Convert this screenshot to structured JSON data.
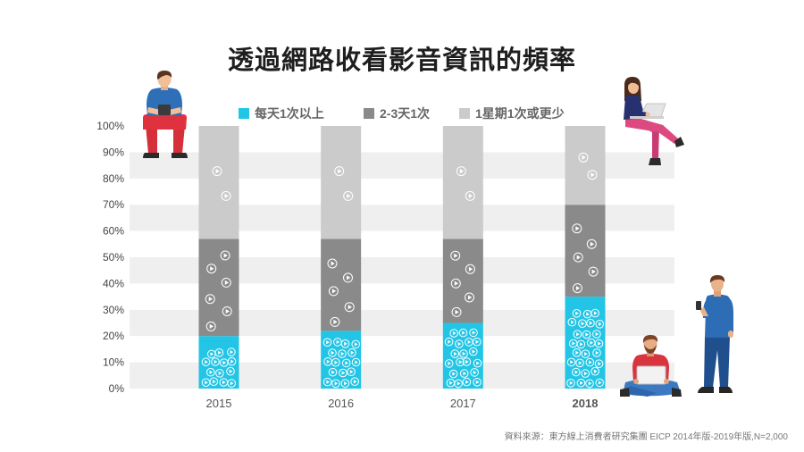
{
  "chart_data": {
    "type": "bar",
    "stacked": true,
    "title": "透過網路收看影音資訊的頻率",
    "categories": [
      "2015",
      "2016",
      "2017",
      "2018"
    ],
    "category_highlight": [
      false,
      false,
      false,
      true
    ],
    "highlight_color": "#1fc3e6",
    "series": [
      {
        "name": "每天1次以上",
        "color": "#22c5e5",
        "values": [
          20,
          22,
          25,
          35
        ]
      },
      {
        "name": "2-3天1次",
        "color": "#8a8a8a",
        "values": [
          37,
          35,
          32,
          35
        ]
      },
      {
        "name": "1星期1次或更少",
        "color": "#cbcbcb",
        "values": [
          43,
          43,
          43,
          30
        ]
      }
    ],
    "ylim": [
      0,
      100
    ],
    "yticks": [
      "0%",
      "10%",
      "20%",
      "30%",
      "40%",
      "50%",
      "60%",
      "70%",
      "80%",
      "90%",
      "100%"
    ],
    "grid": true,
    "band_color": "#efefef",
    "legend": "top"
  },
  "source_note": "資料來源：東方線上消費者研究集團 EICP 2014年版-2019年版,N=2,000",
  "illustrations": [
    "person-sitting-with-phone",
    "woman-sitting-with-laptop",
    "man-standing-with-phone",
    "man-sitting-with-laptop",
    "play-icon"
  ]
}
